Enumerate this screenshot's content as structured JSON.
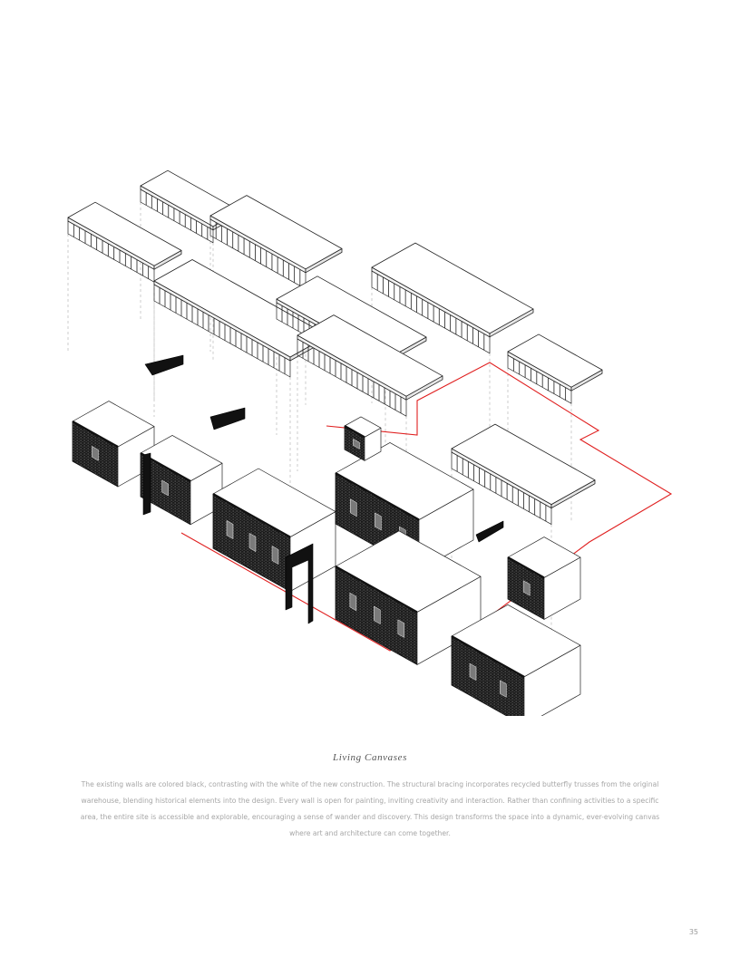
{
  "figure": {
    "drawing": "exploded-axonometric",
    "wall_color_existing": "#111111",
    "new_construction_color": "#ffffff",
    "site_boundary_color": "#e02020"
  },
  "caption": {
    "title": "Living Canvases",
    "body": "The existing walls are colored black, contrasting with the white of the new construction. The structural bracing incorporates recycled butterfly trusses from the original warehouse, blending historical elements into the design. Every wall is open for painting, inviting creativity and interaction. Rather than confining activities to a specific area, the entire site is accessible and explorable, encouraging a sense of wander and discovery. This design transforms the space into a dynamic, ever-evolving canvas where art and architecture can come together."
  },
  "page": {
    "number": "35"
  }
}
